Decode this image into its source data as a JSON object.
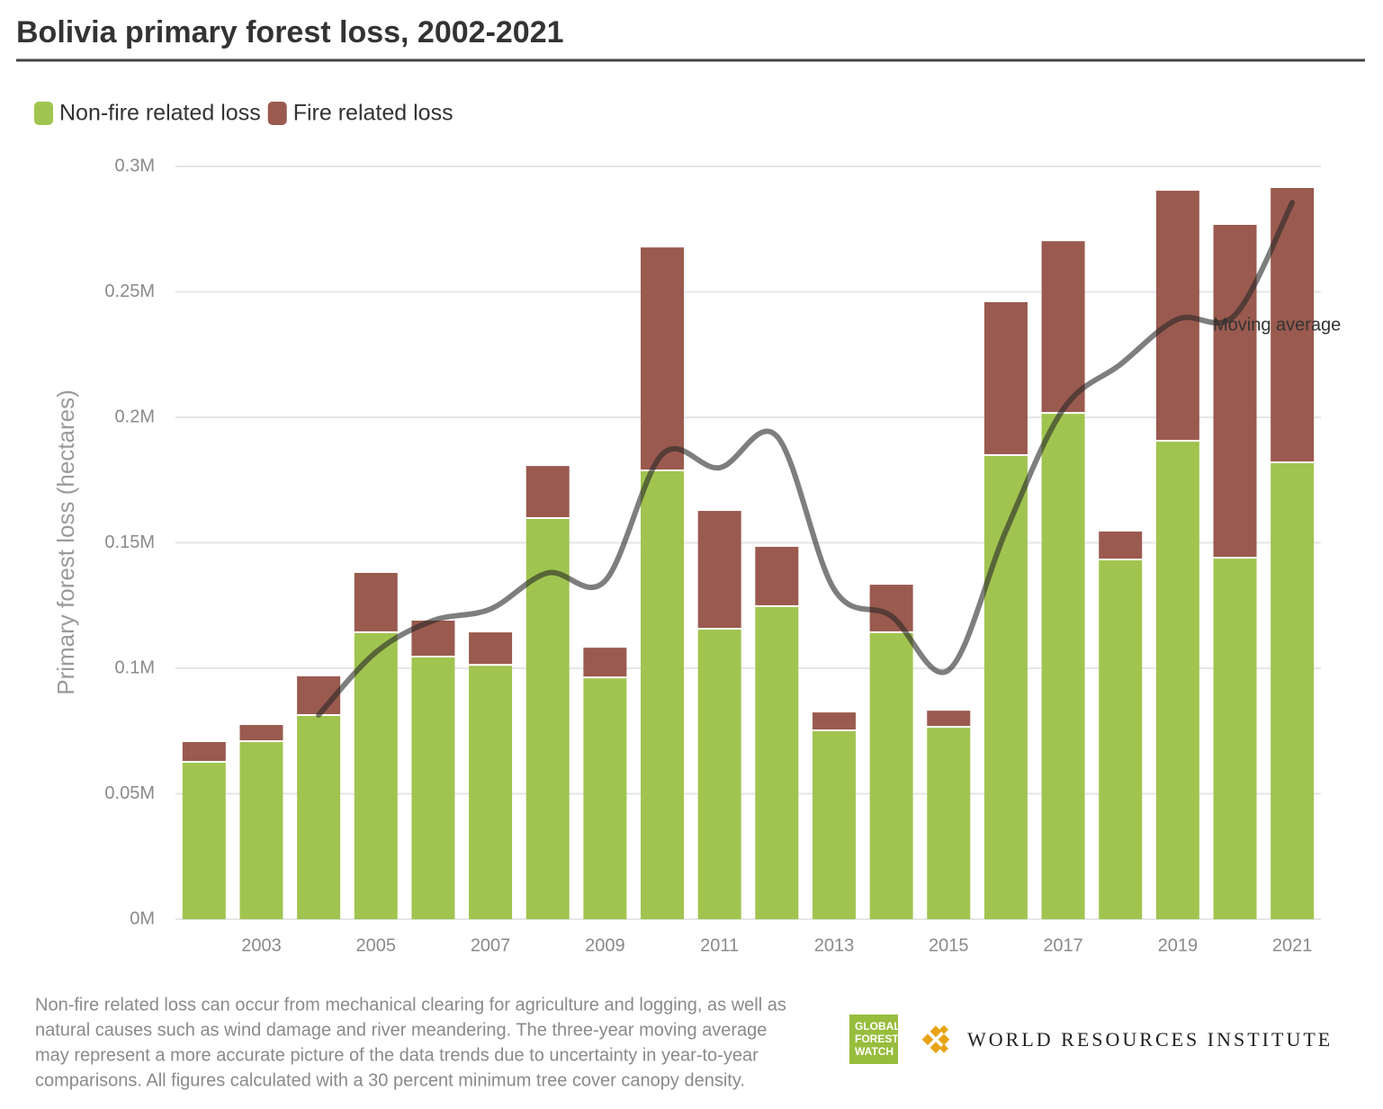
{
  "chart_data": {
    "type": "bar",
    "title": "Bolivia primary forest loss, 2002-2021",
    "y_label": "Primary forest loss (hectares)",
    "categories": [
      null,
      "2003",
      null,
      "2005",
      null,
      "2007",
      null,
      "2009",
      null,
      "2011",
      null,
      "2013",
      null,
      "2015",
      null,
      "2017",
      null,
      "2019",
      null,
      "2021"
    ],
    "stacked": true,
    "series": [
      {
        "name": "Non-fire related loss",
        "color": "#a1c450",
        "values": [
          62360,
          70600,
          81000,
          114000,
          104300,
          101000,
          159500,
          96000,
          178500,
          115400,
          124400,
          74900,
          114000,
          76300,
          184600,
          201400,
          143000,
          190300,
          143700,
          181700
        ]
      },
      {
        "name": "Fire related loss",
        "color": "#9a5a4f",
        "values": [
          8240,
          6800,
          15800,
          24000,
          14700,
          13300,
          21100,
          12200,
          89200,
          47300,
          24000,
          7500,
          19300,
          6800,
          61300,
          68800,
          11500,
          100000,
          133000,
          109700
        ]
      }
    ],
    "line": {
      "name": "Moving average",
      "color": "rgba(40,40,40,0.6)",
      "values": [
        null,
        null,
        81400,
        106400,
        119000,
        123600,
        138000,
        134800,
        185300,
        179900,
        192500,
        131500,
        120800,
        99300,
        154800,
        203200,
        221100,
        239100,
        240800,
        285600
      ]
    },
    "ylim": [
      0,
      300000
    ],
    "yticks": [
      {
        "value": 0,
        "label": "0M"
      },
      {
        "value": 50000,
        "label": "0.05M"
      },
      {
        "value": 100000,
        "label": "0.1M"
      },
      {
        "value": 150000,
        "label": "0.15M"
      },
      {
        "value": 200000,
        "label": "0.2M"
      },
      {
        "value": 250000,
        "label": "0.25M"
      },
      {
        "value": 300000,
        "label": "0.3M"
      }
    ],
    "grid": true,
    "legend": "top-left",
    "footnote": [
      "Non-fire related loss can occur from mechanical clearing for agriculture and logging, as well as",
      "natural causes such as wind damage and river meandering. The three-year moving average",
      "may represent a more accurate picture of the data trends due to uncertainty in year-to-year",
      "comparisons. All figures calculated with a 30 percent minimum tree cover canopy density."
    ],
    "logos": {
      "gfw": [
        "GLOBAL",
        "FOREST",
        "WATCH"
      ],
      "wri": "WORLD RESOURCES INSTITUTE"
    }
  }
}
